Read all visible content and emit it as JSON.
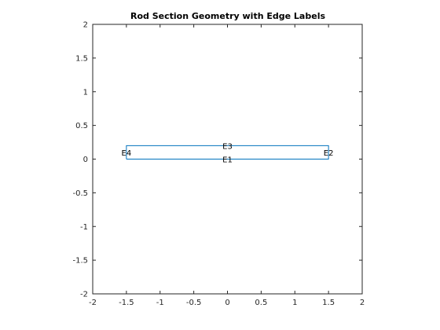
{
  "chart_data": {
    "type": "line",
    "title": "Rod Section Geometry with Edge Labels",
    "xlabel": "",
    "ylabel": "",
    "xlim": [
      -2,
      2
    ],
    "ylim": [
      -2,
      2
    ],
    "xticks": [
      -2,
      -1.5,
      -1,
      -0.5,
      0,
      0.5,
      1,
      1.5,
      2
    ],
    "yticks": [
      -2,
      -1.5,
      -1,
      -0.5,
      0,
      0.5,
      1,
      1.5,
      2
    ],
    "xtick_labels": [
      "-2",
      "-1.5",
      "-1",
      "-0.5",
      "0",
      "0.5",
      "1",
      "1.5",
      "2"
    ],
    "ytick_labels": [
      "-2",
      "-1.5",
      "-1",
      "-0.5",
      "0",
      "0.5",
      "1",
      "1.5",
      "2"
    ],
    "grid": false,
    "series": [
      {
        "x": [
          -1.5,
          1.5,
          1.5,
          -1.5,
          -1.5
        ],
        "y": [
          0,
          0,
          0.2,
          0.2,
          0
        ],
        "color": "#0072BD"
      }
    ],
    "annotations": [
      {
        "text": "E1",
        "x": 0,
        "y": 0
      },
      {
        "text": "E2",
        "x": 1.5,
        "y": 0.1
      },
      {
        "text": "E3",
        "x": 0,
        "y": 0.2
      },
      {
        "text": "E4",
        "x": -1.5,
        "y": 0.1
      }
    ]
  }
}
